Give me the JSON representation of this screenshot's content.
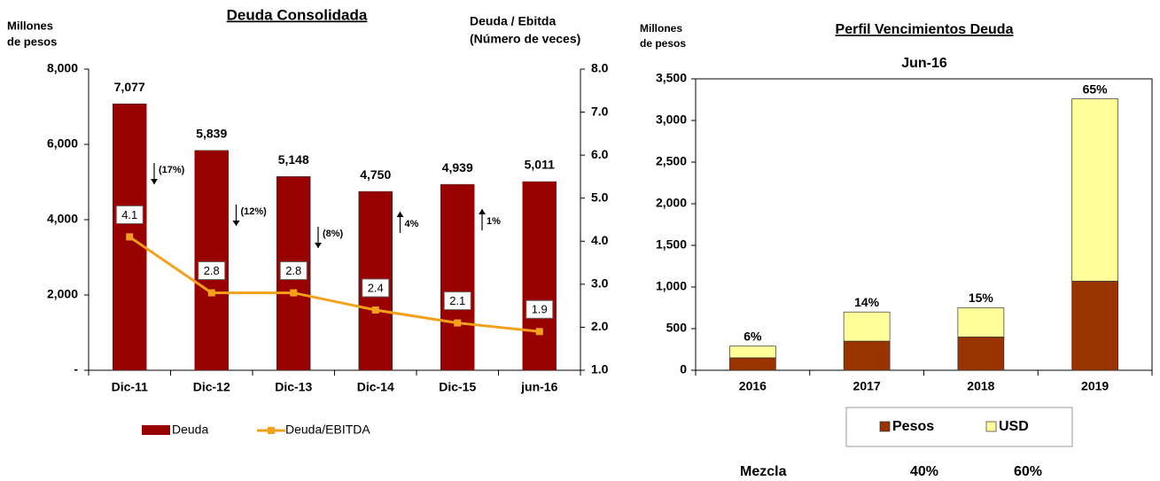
{
  "chart_data": [
    {
      "type": "bar",
      "title": "Deuda Consolidada",
      "y_label": [
        "Millones",
        "de pesos"
      ],
      "y2_label": [
        "Deuda / Ebitda",
        "(Número de veces)"
      ],
      "categories": [
        "Dic-11",
        "Dic-12",
        "Dic-13",
        "Dic-14",
        "Dic-15",
        "jun-16"
      ],
      "series": [
        {
          "name": "Deuda",
          "color": "#990000",
          "values": [
            7077,
            5839,
            5148,
            4750,
            4939,
            5011
          ],
          "value_labels": [
            "7,077",
            "5,839",
            "5,148",
            "4,750",
            "4,939",
            "5,011"
          ]
        },
        {
          "name": "Deuda/EBITDA",
          "color": "#f5a01a",
          "type": "line",
          "axis": "y2",
          "values": [
            4.1,
            2.8,
            2.8,
            2.4,
            2.1,
            1.9
          ]
        }
      ],
      "ylim": [
        0,
        8000
      ],
      "yticks": [
        {
          "value": 0,
          "label": "-"
        },
        {
          "value": 2000,
          "label": "2,000"
        },
        {
          "value": 4000,
          "label": "4,000"
        },
        {
          "value": 6000,
          "label": "6,000"
        },
        {
          "value": 8000,
          "label": "8,000"
        }
      ],
      "y2lim": [
        1,
        8
      ],
      "y2ticks": [
        {
          "value": 1,
          "label": "1.0"
        },
        {
          "value": 2,
          "label": "2.0"
        },
        {
          "value": 3,
          "label": "3.0"
        },
        {
          "value": 4,
          "label": "4.0"
        },
        {
          "value": 5,
          "label": "5.0"
        },
        {
          "value": 6,
          "label": "6.0"
        },
        {
          "value": 7,
          "label": "7.0"
        },
        {
          "value": 8,
          "label": "8.0"
        }
      ],
      "arrows": [
        {
          "text": "(17%)",
          "direction": "down"
        },
        {
          "text": "(12%)",
          "direction": "down"
        },
        {
          "text": "(8%)",
          "direction": "down"
        },
        {
          "text": "4%",
          "direction": "up"
        },
        {
          "text": "1%",
          "direction": "up"
        }
      ]
    },
    {
      "type": "stacked_bar",
      "title": "Perfil Vencimientos Deuda",
      "subtitle": "Jun-16",
      "y_label": [
        "Millones",
        "de pesos"
      ],
      "categories": [
        "2016",
        "2017",
        "2018",
        "2019"
      ],
      "series": [
        {
          "name": "Pesos",
          "color": "#993300",
          "values": [
            150,
            350,
            400,
            1070
          ]
        },
        {
          "name": "USD",
          "color": "#ffff99",
          "values": [
            140,
            350,
            350,
            2190
          ]
        }
      ],
      "shares": {
        "values": [
          6,
          14,
          15,
          65
        ],
        "value_labels": [
          "6%",
          "14%",
          "15%",
          "65%"
        ]
      },
      "ylim": [
        0,
        3500
      ],
      "yticks": [
        0,
        500,
        {
          "value": 1000,
          "label": "1,000"
        },
        {
          "value": 1500,
          "label": "1,500"
        },
        {
          "value": 2000,
          "label": "2,000"
        },
        {
          "value": 2500,
          "label": "2,500"
        },
        {
          "value": 3000,
          "label": "3,000"
        },
        {
          "value": 3500,
          "label": "3,500"
        }
      ],
      "mix": {
        "label": "Mezcla",
        "values": [
          40,
          60
        ],
        "value_labels": [
          "40%",
          "60%"
        ]
      }
    }
  ]
}
